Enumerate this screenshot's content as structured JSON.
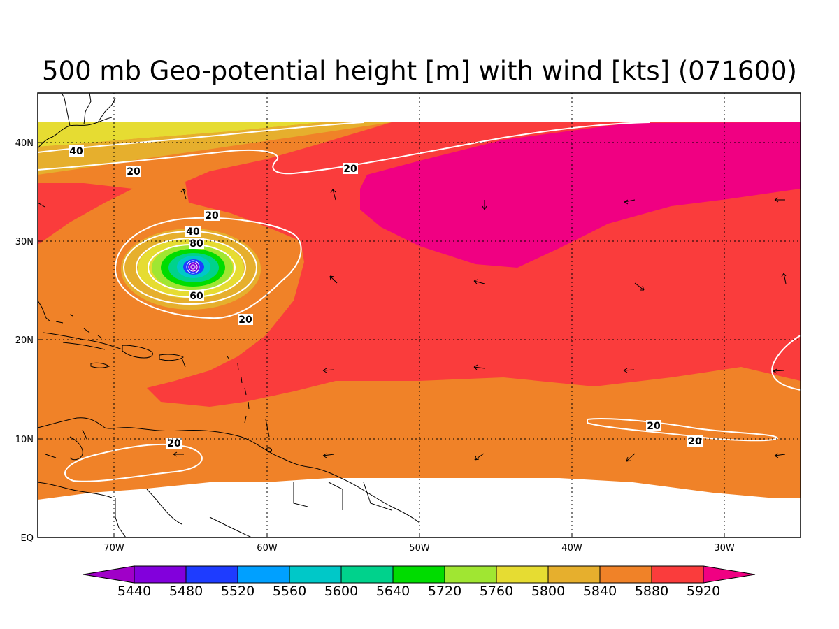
{
  "title": "500 mb Geo-potential height [m] with wind [kts] (071600)",
  "map": {
    "lon_ticks": [
      "70W",
      "60W",
      "50W",
      "40W",
      "30W"
    ],
    "lat_ticks": [
      "40N",
      "30N",
      "20N",
      "10N",
      "EQ"
    ],
    "lon_range": [
      -75,
      -25
    ],
    "lat_range": [
      0,
      45
    ],
    "grid": true
  },
  "colorbar": {
    "labels": [
      "5440",
      "5480",
      "5520",
      "5560",
      "5600",
      "5640",
      "5720",
      "5760",
      "5800",
      "5840",
      "5880",
      "5920"
    ],
    "colors": [
      "#a000c8",
      "#8200dc",
      "#1e3cff",
      "#00a0ff",
      "#00c8c8",
      "#00d28c",
      "#00dc00",
      "#a0e632",
      "#e6dc32",
      "#e6af2d",
      "#f08228",
      "#fa3c3c",
      "#f00082"
    ],
    "extend": "both"
  },
  "wind_contours": {
    "color": "#ffffff",
    "labels": [
      "40",
      "20",
      "20",
      "20",
      "40",
      "80",
      "60",
      "20",
      "20",
      "20",
      "20"
    ]
  },
  "colors": {
    "fill_5800": "#e6dc32",
    "fill_5840": "#e6af2d",
    "fill_5880": "#f08228",
    "fill_5920": "#fa3c3c",
    "fill_over": "#f00082",
    "hurricane_core": [
      "#a0e632",
      "#00dc00",
      "#00d28c",
      "#00c8c8",
      "#1e3cff",
      "#8200dc"
    ]
  }
}
